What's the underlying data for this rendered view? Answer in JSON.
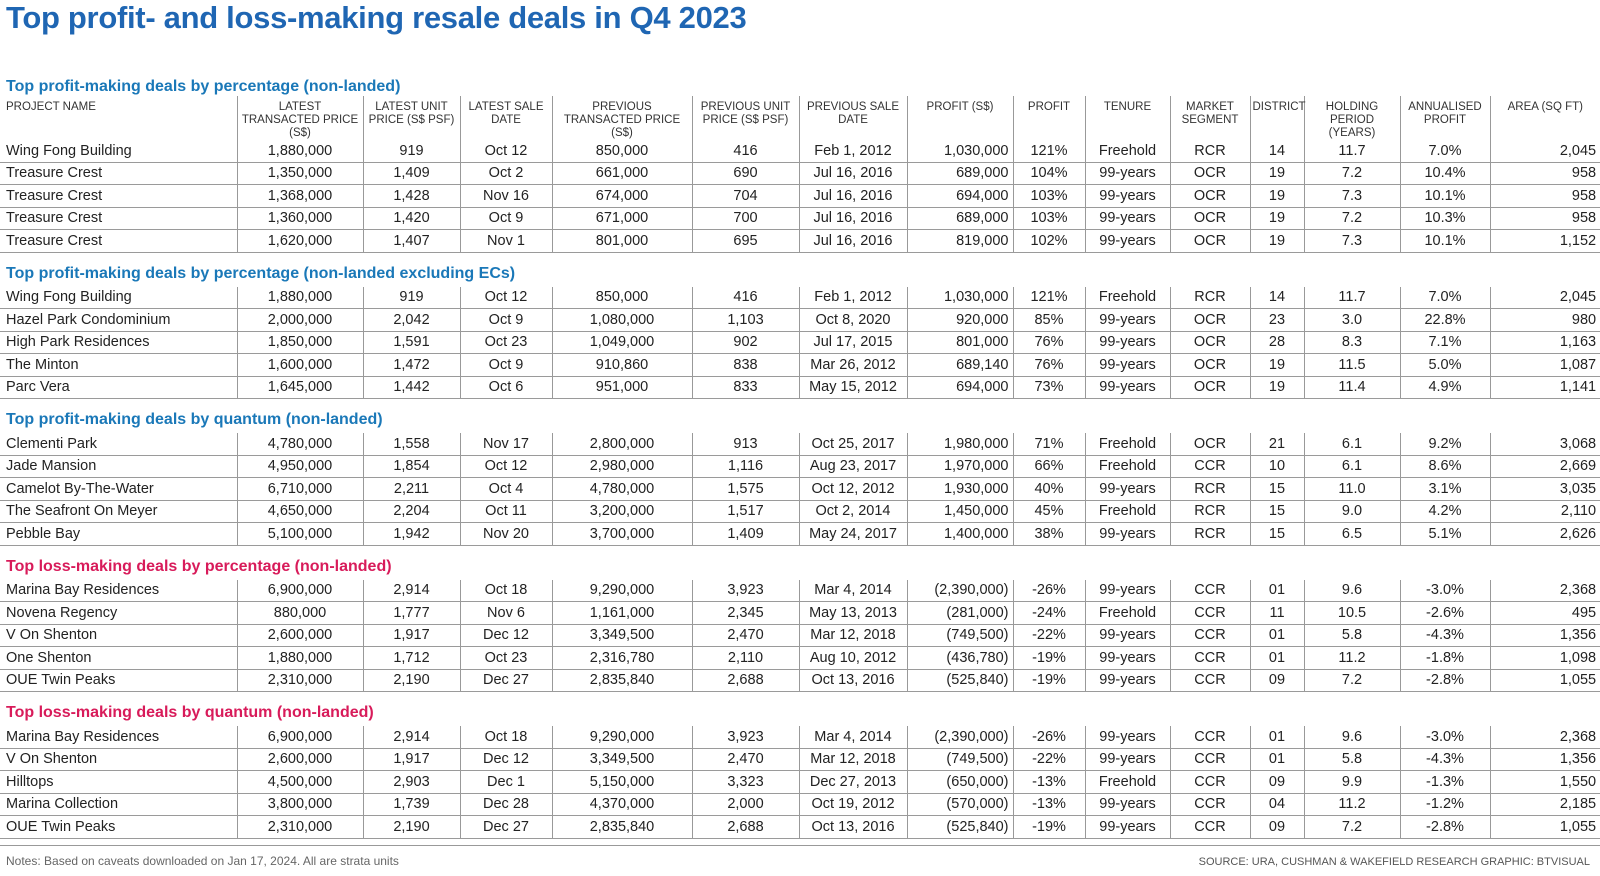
{
  "title": "Top profit- and loss-making resale deals in Q4 2023",
  "colors": {
    "title": "#1f66b3",
    "profit_heading": "#1a78b8",
    "loss_heading": "#d81b5a"
  },
  "columns": [
    "PROJECT NAME",
    "LATEST TRANSACTED PRICE (S$)",
    "LATEST UNIT PRICE (S$ PSF)",
    "LATEST SALE DATE",
    "PREVIOUS TRANSACTED PRICE (S$)",
    "PREVIOUS UNIT PRICE (S$ PSF)",
    "PREVIOUS SALE DATE",
    "PROFIT (S$)",
    "PROFIT",
    "TENURE",
    "MARKET SEGMENT",
    "DISTRICT",
    "HOLDING PERIOD (YEARS)",
    "ANNUALISED PROFIT",
    "AREA (SQ FT)"
  ],
  "sections": [
    {
      "heading": "Top profit-making deals by percentage (non-landed)",
      "kind": "profit",
      "rows": [
        [
          "Wing Fong Building",
          "1,880,000",
          "919",
          "Oct 12",
          "850,000",
          "416",
          "Feb 1, 2012",
          "1,030,000",
          "121%",
          "Freehold",
          "RCR",
          "14",
          "11.7",
          "7.0%",
          "2,045"
        ],
        [
          "Treasure Crest",
          "1,350,000",
          "1,409",
          "Oct 2",
          "661,000",
          "690",
          "Jul 16, 2016",
          "689,000",
          "104%",
          "99-years",
          "OCR",
          "19",
          "7.2",
          "10.4%",
          "958"
        ],
        [
          "Treasure Crest",
          "1,368,000",
          "1,428",
          "Nov 16",
          "674,000",
          "704",
          "Jul 16, 2016",
          "694,000",
          "103%",
          "99-years",
          "OCR",
          "19",
          "7.3",
          "10.1%",
          "958"
        ],
        [
          "Treasure Crest",
          "1,360,000",
          "1,420",
          "Oct 9",
          "671,000",
          "700",
          "Jul 16, 2016",
          "689,000",
          "103%",
          "99-years",
          "OCR",
          "19",
          "7.2",
          "10.3%",
          "958"
        ],
        [
          "Treasure Crest",
          "1,620,000",
          "1,407",
          "Nov 1",
          "801,000",
          "695",
          "Jul 16, 2016",
          "819,000",
          "102%",
          "99-years",
          "OCR",
          "19",
          "7.3",
          "10.1%",
          "1,152"
        ]
      ]
    },
    {
      "heading": "Top profit-making deals by percentage (non-landed excluding ECs)",
      "kind": "profit",
      "rows": [
        [
          "Wing Fong Building",
          "1,880,000",
          "919",
          "Oct 12",
          "850,000",
          "416",
          "Feb 1, 2012",
          "1,030,000",
          "121%",
          "Freehold",
          "RCR",
          "14",
          "11.7",
          "7.0%",
          "2,045"
        ],
        [
          "Hazel Park Condominium",
          "2,000,000",
          "2,042",
          "Oct 9",
          "1,080,000",
          "1,103",
          "Oct 8, 2020",
          "920,000",
          "85%",
          "99-years",
          "OCR",
          "23",
          "3.0",
          "22.8%",
          "980"
        ],
        [
          "High Park Residences",
          "1,850,000",
          "1,591",
          "Oct 23",
          "1,049,000",
          "902",
          "Jul 17, 2015",
          "801,000",
          "76%",
          "99-years",
          "OCR",
          "28",
          "8.3",
          "7.1%",
          "1,163"
        ],
        [
          "The Minton",
          "1,600,000",
          "1,472",
          "Oct 9",
          "910,860",
          "838",
          "Mar 26, 2012",
          "689,140",
          "76%",
          "99-years",
          "OCR",
          "19",
          "11.5",
          "5.0%",
          "1,087"
        ],
        [
          "Parc Vera",
          "1,645,000",
          "1,442",
          "Oct 6",
          "951,000",
          "833",
          "May 15, 2012",
          "694,000",
          "73%",
          "99-years",
          "OCR",
          "19",
          "11.4",
          "4.9%",
          "1,141"
        ]
      ]
    },
    {
      "heading": "Top profit-making deals by quantum (non-landed)",
      "kind": "profit",
      "rows": [
        [
          "Clementi Park",
          "4,780,000",
          "1,558",
          "Nov 17",
          "2,800,000",
          "913",
          "Oct 25, 2017",
          "1,980,000",
          "71%",
          "Freehold",
          "OCR",
          "21",
          "6.1",
          "9.2%",
          "3,068"
        ],
        [
          "Jade Mansion",
          "4,950,000",
          "1,854",
          "Oct 12",
          "2,980,000",
          "1,116",
          "Aug 23, 2017",
          "1,970,000",
          "66%",
          "Freehold",
          "CCR",
          "10",
          "6.1",
          "8.6%",
          "2,669"
        ],
        [
          "Camelot By-The-Water",
          "6,710,000",
          "2,211",
          "Oct 4",
          "4,780,000",
          "1,575",
          "Oct 12, 2012",
          "1,930,000",
          "40%",
          "99-years",
          "RCR",
          "15",
          "11.0",
          "3.1%",
          "3,035"
        ],
        [
          "The Seafront On Meyer",
          "4,650,000",
          "2,204",
          "Oct 11",
          "3,200,000",
          "1,517",
          "Oct 2, 2014",
          "1,450,000",
          "45%",
          "Freehold",
          "RCR",
          "15",
          "9.0",
          "4.2%",
          "2,110"
        ],
        [
          "Pebble Bay",
          "5,100,000",
          "1,942",
          "Nov 20",
          "3,700,000",
          "1,409",
          "May 24, 2017",
          "1,400,000",
          "38%",
          "99-years",
          "RCR",
          "15",
          "6.5",
          "5.1%",
          "2,626"
        ]
      ]
    },
    {
      "heading": "Top loss-making deals by percentage (non-landed)",
      "kind": "loss",
      "rows": [
        [
          "Marina Bay Residences",
          "6,900,000",
          "2,914",
          "Oct 18",
          "9,290,000",
          "3,923",
          "Mar 4, 2014",
          "(2,390,000)",
          "-26%",
          "99-years",
          "CCR",
          "01",
          "9.6",
          "-3.0%",
          "2,368"
        ],
        [
          "Novena Regency",
          "880,000",
          "1,777",
          "Nov 6",
          "1,161,000",
          "2,345",
          "May 13, 2013",
          "(281,000)",
          "-24%",
          "Freehold",
          "CCR",
          "11",
          "10.5",
          "-2.6%",
          "495"
        ],
        [
          "V On Shenton",
          "2,600,000",
          "1,917",
          "Dec 12",
          "3,349,500",
          "2,470",
          "Mar 12, 2018",
          "(749,500)",
          "-22%",
          "99-years",
          "CCR",
          "01",
          "5.8",
          "-4.3%",
          "1,356"
        ],
        [
          "One Shenton",
          "1,880,000",
          "1,712",
          "Oct 23",
          "2,316,780",
          "2,110",
          "Aug 10, 2012",
          "(436,780)",
          "-19%",
          "99-years",
          "CCR",
          "01",
          "11.2",
          "-1.8%",
          "1,098"
        ],
        [
          "OUE Twin Peaks",
          "2,310,000",
          "2,190",
          "Dec 27",
          "2,835,840",
          "2,688",
          "Oct 13, 2016",
          "(525,840)",
          "-19%",
          "99-years",
          "CCR",
          "09",
          "7.2",
          "-2.8%",
          "1,055"
        ]
      ]
    },
    {
      "heading": "Top loss-making deals by quantum (non-landed)",
      "kind": "loss",
      "rows": [
        [
          "Marina Bay Residences",
          "6,900,000",
          "2,914",
          "Oct 18",
          "9,290,000",
          "3,923",
          "Mar 4, 2014",
          "(2,390,000)",
          "-26%",
          "99-years",
          "CCR",
          "01",
          "9.6",
          "-3.0%",
          "2,368"
        ],
        [
          "V On Shenton",
          "2,600,000",
          "1,917",
          "Dec 12",
          "3,349,500",
          "2,470",
          "Mar 12, 2018",
          "(749,500)",
          "-22%",
          "99-years",
          "CCR",
          "01",
          "5.8",
          "-4.3%",
          "1,356"
        ],
        [
          "Hilltops",
          "4,500,000",
          "2,903",
          "Dec 1",
          "5,150,000",
          "3,323",
          "Dec 27, 2013",
          "(650,000)",
          "-13%",
          "Freehold",
          "CCR",
          "09",
          "9.9",
          "-1.3%",
          "1,550"
        ],
        [
          "Marina Collection",
          "3,800,000",
          "1,739",
          "Dec 28",
          "4,370,000",
          "2,000",
          "Oct 19, 2012",
          "(570,000)",
          "-13%",
          "99-years",
          "CCR",
          "04",
          "11.2",
          "-1.2%",
          "2,185"
        ],
        [
          "OUE Twin Peaks",
          "2,310,000",
          "2,190",
          "Dec 27",
          "2,835,840",
          "2,688",
          "Oct 13, 2016",
          "(525,840)",
          "-19%",
          "99-years",
          "CCR",
          "09",
          "7.2",
          "-2.8%",
          "1,055"
        ]
      ]
    }
  ],
  "notes": "Notes: Based on caveats downloaded on Jan 17, 2024.  All are strata units",
  "source": "SOURCE: URA, CUSHMAN & WAKEFIELD RESEARCH   GRAPHIC: BTVISUAL"
}
